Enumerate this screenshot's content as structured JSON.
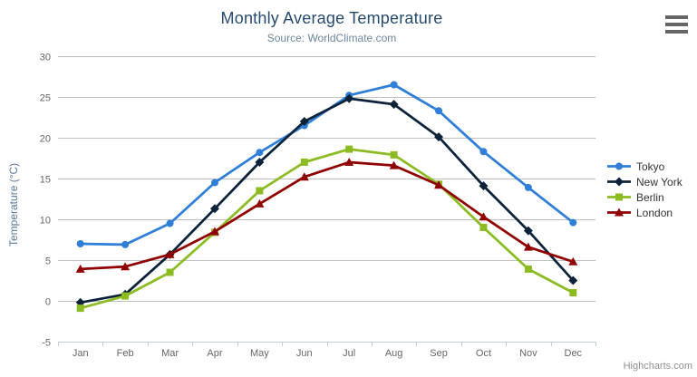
{
  "chart_data": {
    "type": "line",
    "title": "Monthly Average Temperature",
    "subtitle": "Source: WorldClimate.com",
    "xlabel": "",
    "ylabel": "Temperature (°C)",
    "categories": [
      "Jan",
      "Feb",
      "Mar",
      "Apr",
      "May",
      "Jun",
      "Jul",
      "Aug",
      "Sep",
      "Oct",
      "Nov",
      "Dec"
    ],
    "ylim": [
      -5,
      30
    ],
    "y_ticks": [
      -5,
      0,
      5,
      10,
      15,
      20,
      25,
      30
    ],
    "grid": true,
    "legend_position": "right",
    "series": [
      {
        "name": "Tokyo",
        "marker": "circle",
        "color": "#2f7ed8",
        "values": [
          7.0,
          6.9,
          9.5,
          14.5,
          18.2,
          21.5,
          25.2,
          26.5,
          23.3,
          18.3,
          13.9,
          9.6
        ]
      },
      {
        "name": "New York",
        "marker": "diamond",
        "color": "#0d233a",
        "values": [
          -0.2,
          0.8,
          5.7,
          11.3,
          17.0,
          22.0,
          24.8,
          24.1,
          20.1,
          14.1,
          8.6,
          2.5
        ]
      },
      {
        "name": "Berlin",
        "marker": "square",
        "color": "#8bbc21",
        "values": [
          -0.9,
          0.6,
          3.5,
          8.4,
          13.5,
          17.0,
          18.6,
          17.9,
          14.3,
          9.0,
          3.9,
          1.0
        ]
      },
      {
        "name": "London",
        "marker": "triangle",
        "color": "#910000",
        "values": [
          3.9,
          4.2,
          5.7,
          8.5,
          11.9,
          15.2,
          17.0,
          16.6,
          14.2,
          10.3,
          6.6,
          4.8
        ]
      }
    ]
  },
  "credits": {
    "label": "Highcharts.com"
  },
  "menu": {
    "icon": "hamburger-icon"
  },
  "colors": {
    "grid": "#c0c0c0",
    "axis_line": "#c0d0e0",
    "title": "#274b6d",
    "subtitle": "#6d869f",
    "axis_labels": "#666666",
    "legend_text": "#333333",
    "credits": "#909090",
    "menu_icon": "#666666"
  }
}
